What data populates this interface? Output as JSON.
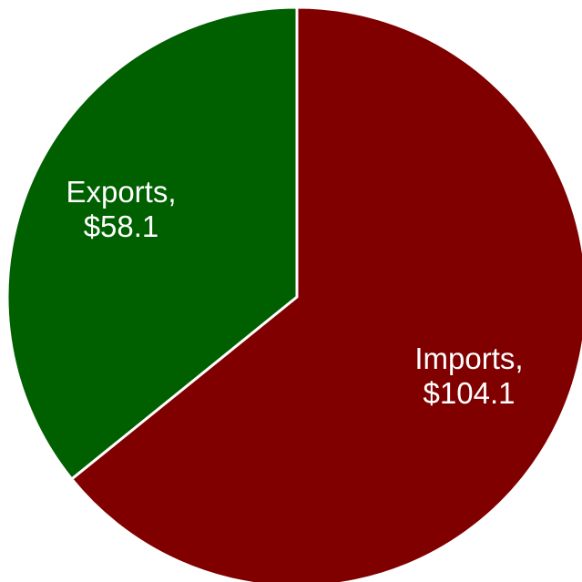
{
  "chart_data": {
    "type": "pie",
    "categories": [
      "Imports",
      "Exports"
    ],
    "values": [
      104.1,
      58.1
    ],
    "labels": [
      {
        "name": "Imports,",
        "value": "$104.1"
      },
      {
        "name": "Exports,",
        "value": "$58.1"
      }
    ],
    "colors": [
      "#800000",
      "#006000"
    ],
    "start_angle_deg": 0,
    "direction": "clockwise"
  }
}
